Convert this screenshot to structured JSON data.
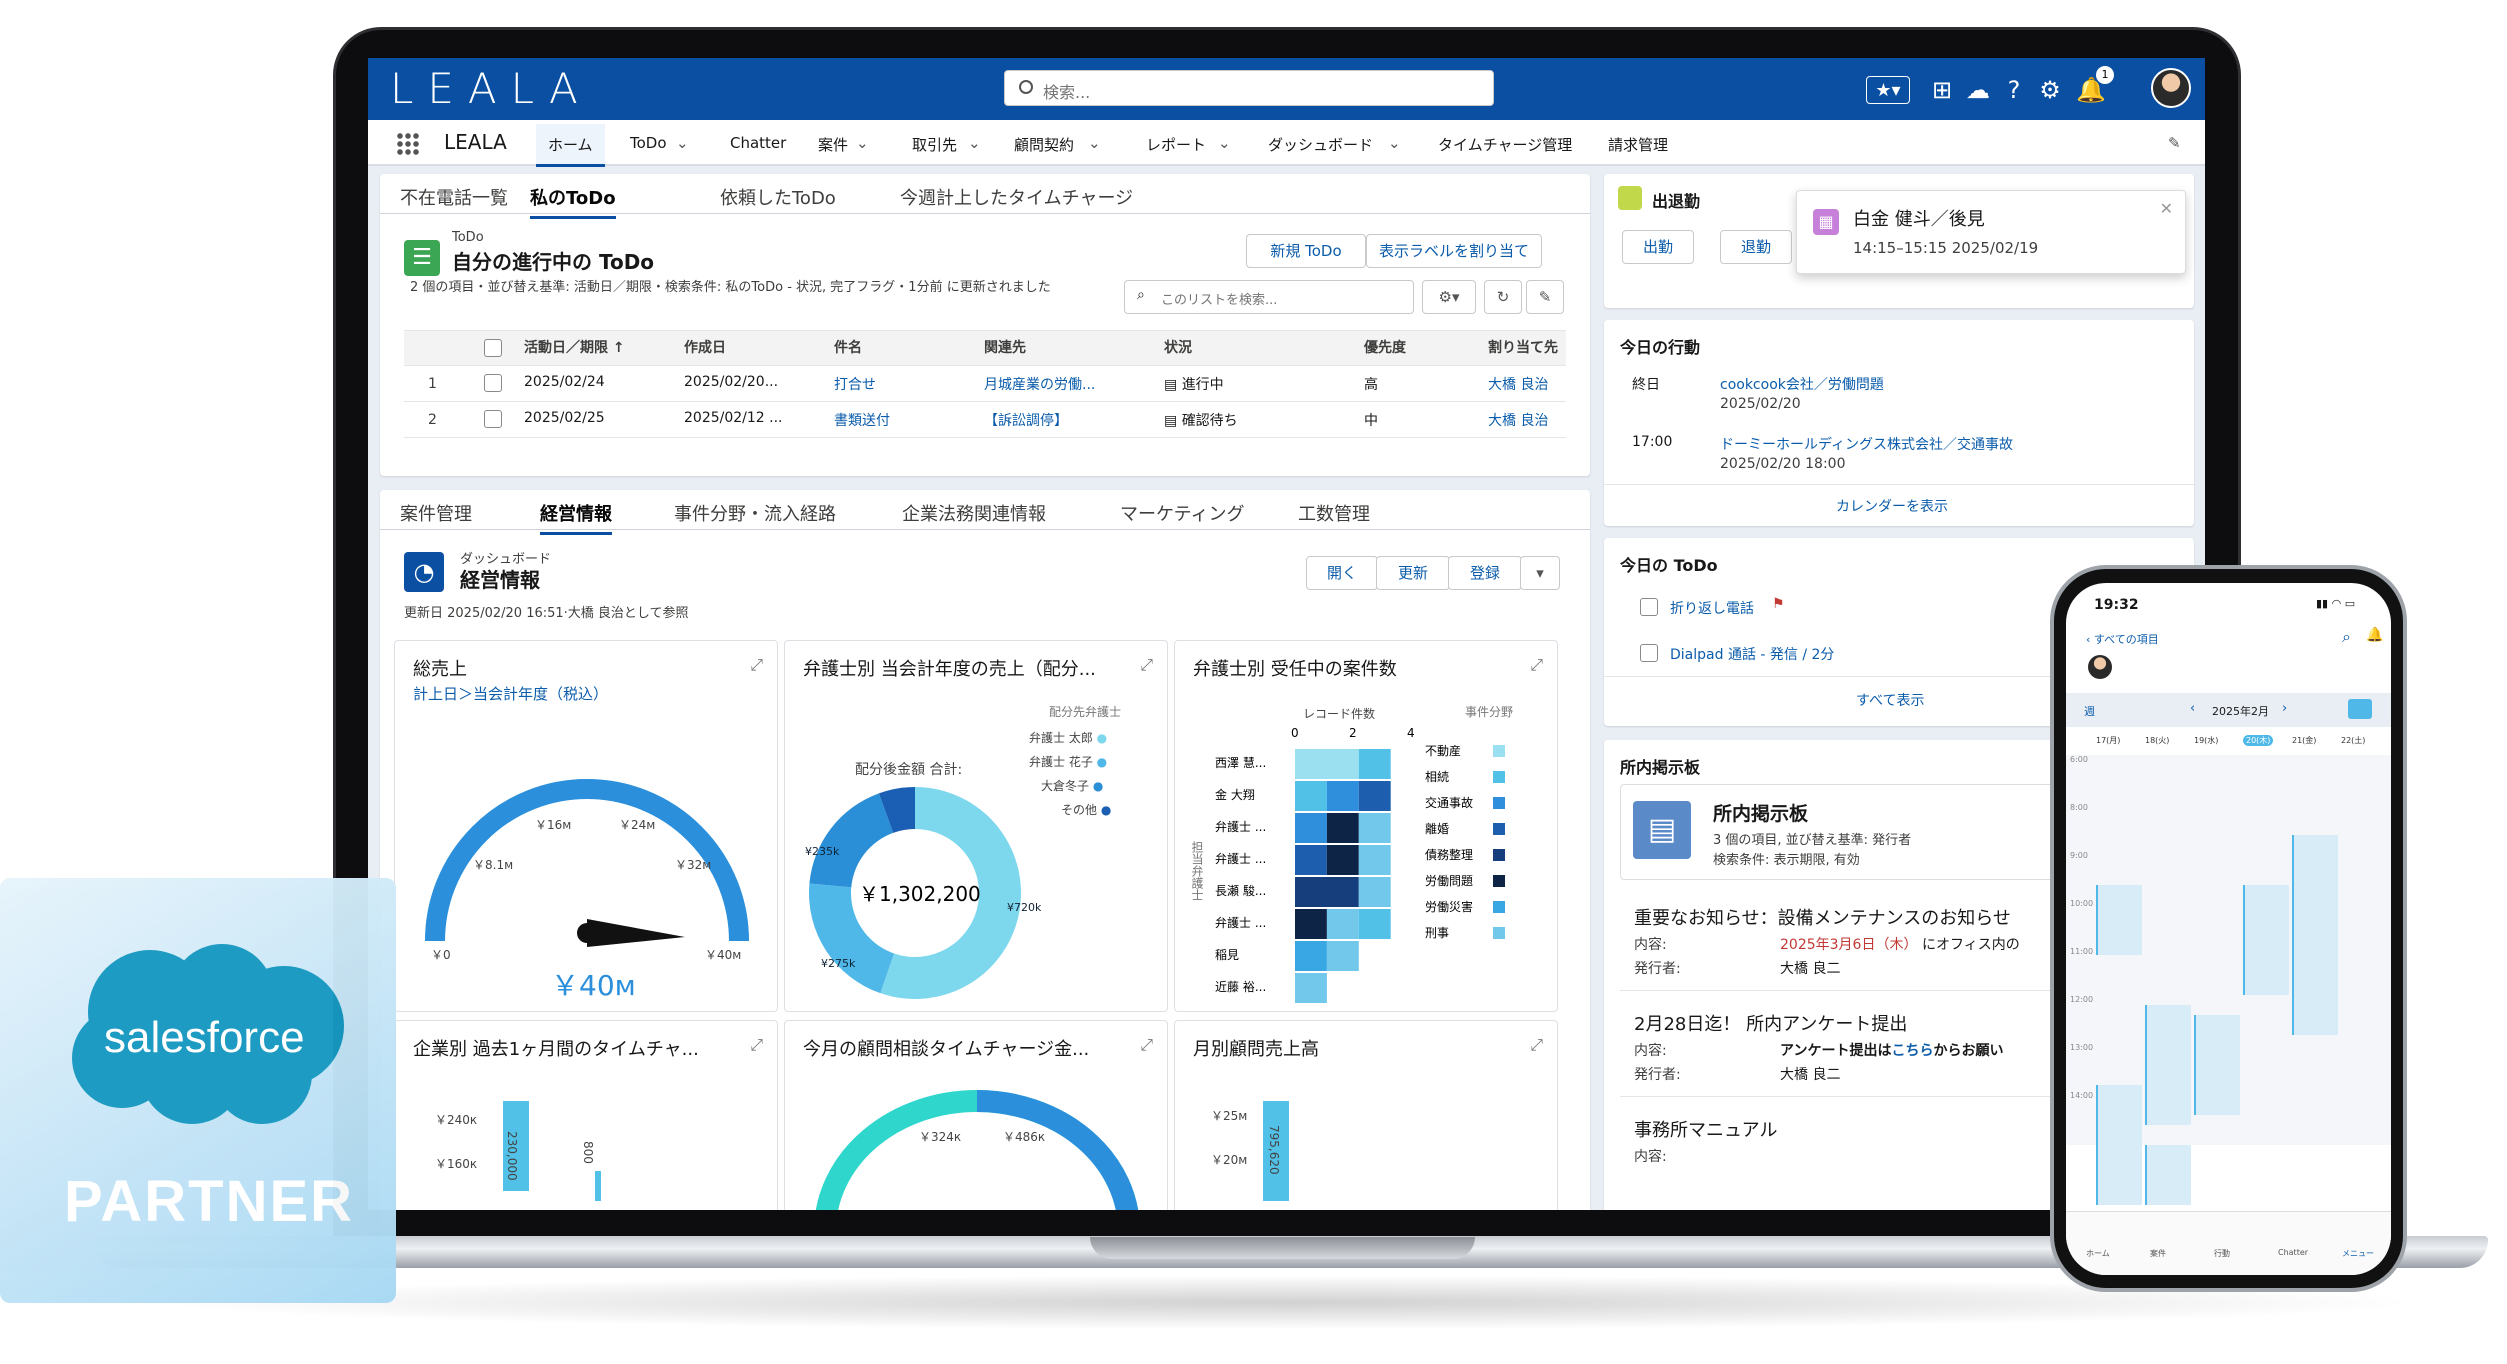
{
  "app": {
    "logo": "LEALA",
    "search_placeholder": "検索...",
    "notif_count": "1",
    "app_name": "LEALA"
  },
  "nav": [
    "ホーム",
    "ToDo",
    "Chatter",
    "案件",
    "取引先",
    "顧問契約",
    "レポート",
    "ダッシュボード",
    "タイムチャージ管理",
    "請求管理"
  ],
  "top_tabs": [
    "不在電話一覧",
    "私のToDo",
    "依頼したToDo",
    "今週計上したタイムチャージ"
  ],
  "todo": {
    "object": "ToDo",
    "title": "自分の進行中の ToDo",
    "meta": "2 個の項目・並び替え基準: 活動日／期限・検索条件: 私のToDo - 状況, 完了フラグ・1分前 に更新されました",
    "new_btn": "新規 ToDo",
    "label_btn": "表示ラベルを割り当て",
    "search_ph": "このリストを検索...",
    "headers": [
      "活動日／期限 ↑",
      "作成日",
      "件名",
      "関連先",
      "状況",
      "優先度",
      "割り当て先"
    ],
    "rows": [
      {
        "n": "1",
        "due": "2025/02/24",
        "created": "2025/02/20...",
        "subject": "打合せ",
        "related": "月城産業の労働...",
        "status": "進行中",
        "priority": "高",
        "owner": "大橋 良治"
      },
      {
        "n": "2",
        "due": "2025/02/25",
        "created": "2025/02/12 ...",
        "subject": "書類送付",
        "related": "【訴訟調停】",
        "status": "確認待ち",
        "priority": "中",
        "owner": "大橋 良治"
      }
    ]
  },
  "dash_tabs": [
    "案件管理",
    "経営情報",
    "事件分野・流入経路",
    "企業法務関連情報",
    "マーケティング",
    "工数管理"
  ],
  "dashboard": {
    "object": "ダッシュボード",
    "title": "経営情報",
    "meta": "更新日 2025/02/20 16:51·大橋 良治として参照",
    "btn_open": "開く",
    "btn_refresh": "更新",
    "btn_subscribe": "登録"
  },
  "panels": {
    "p1": {
      "title": "総売上",
      "subtitle": "計上日＞当会計年度（税込）",
      "value": "￥40м"
    },
    "p2": {
      "title": "弁護士別 当会計年度の売上（配分...",
      "legend_title": "配分先弁護士",
      "total_label": "配分後金額 合計:",
      "total": "￥1,302,200"
    },
    "p3": {
      "title": "弁護士別 受任中の案件数",
      "count_label": "レコード件数",
      "legend_title": "事件分野",
      "axis_label": "担当弁護士"
    },
    "p4": {
      "title": "企業別 過去1ヶ月間のタイムチャ..."
    },
    "p5": {
      "title": "今月の顧問相談タイムチャージ金..."
    },
    "p6": {
      "title": "月別顧問売上高"
    }
  },
  "chart_data": [
    {
      "type": "gauge",
      "title": "総売上",
      "value": 40,
      "unit": "￥M",
      "ticks": [
        "￥0",
        "￥8.1м",
        "￥16м",
        "￥24м",
        "￥32м",
        "￥40м"
      ]
    },
    {
      "type": "pie",
      "title": "弁護士別 当会計年度の売上（配分...",
      "total": "￥1,302,200",
      "slices": [
        {
          "name": "弁護士 太郎",
          "value": 720,
          "color": "#7dd8ee"
        },
        {
          "name": "弁護士 花子",
          "value": 275,
          "color": "#4fb8e8"
        },
        {
          "name": "大倉冬子",
          "value": 235,
          "color": "#2a8fd6"
        },
        {
          "name": "その他",
          "value": 72,
          "color": "#1a5fb4"
        }
      ],
      "labels": [
        "¥235k",
        "¥720k",
        "¥275k"
      ]
    },
    {
      "type": "bar",
      "title": "弁護士別 受任中の案件数",
      "categories": [
        "西澤 慧...",
        "金 大翔",
        "弁護士 ...",
        "弁護士 ...",
        "長瀬 駿...",
        "弁護士 ...",
        "稲見",
        "近藤 裕..."
      ],
      "xlim": [
        0,
        4
      ],
      "ticks": [
        "0",
        "2",
        "4"
      ],
      "series": [
        {
          "name": "不動産",
          "color": "#9be0f0"
        },
        {
          "name": "相続",
          "color": "#52c1e8"
        },
        {
          "name": "交通事故",
          "color": "#2f8fdc"
        },
        {
          "name": "離婚",
          "color": "#1d5fae"
        },
        {
          "name": "債務整理",
          "color": "#163e7d"
        },
        {
          "name": "労働問題",
          "color": "#0d2447"
        },
        {
          "name": "労働災害",
          "color": "#39a7e4"
        },
        {
          "name": "刑事",
          "color": "#71c8ea"
        }
      ]
    },
    {
      "type": "bar",
      "title": "企業別 過去1ヶ月間のタイムチャ...",
      "ticks": [
        "￥240к",
        "￥160к"
      ],
      "labels": [
        "230,000",
        "800"
      ]
    },
    {
      "type": "gauge",
      "title": "今月の顧問相談タイムチャージ金...",
      "ticks": [
        "￥324к",
        "￥486к"
      ]
    },
    {
      "type": "bar",
      "title": "月別顧問売上高",
      "ticks": [
        "￥25м",
        "￥20м"
      ],
      "labels": [
        "795,620"
      ]
    }
  ],
  "attendance": {
    "title": "出退勤",
    "in": "出勤",
    "out": "退勤",
    "event_name": "白金 健斗／後見",
    "event_time": "14:15–15:15 2025/02/19"
  },
  "today_actions": {
    "title": "今日の行動",
    "items": [
      {
        "time": "終日",
        "name": "cookcook会社／労働問題",
        "date": "2025/02/20"
      },
      {
        "time": "17:00",
        "name": "ドーミーホールディングス株式会社／交通事故",
        "date": "2025/02/20 18:00"
      }
    ],
    "link": "カレンダーを表示"
  },
  "today_todo": {
    "title": "今日の ToDo",
    "items": [
      "折り返し電話",
      "Dialpad 通話 - 発信 / 2分"
    ],
    "link": "すべて表示"
  },
  "board": {
    "title": "所内掲示板",
    "card_title": "所内掲示板",
    "card_meta1": "3 個の項目, 並び替え基準: 発行者",
    "card_meta2": "検索条件: 表示期限, 有効",
    "posts": [
      {
        "title": "重要なお知らせ：設備メンテナンスのお知らせ",
        "content_label": "内容:",
        "content": "2025年3月6日（木）",
        "content2": "にオフィス内の",
        "pub_label": "発行者:",
        "pub": "大橋 良二"
      },
      {
        "title": "2月28日迄！ 所内アンケート提出",
        "content_label": "内容:",
        "content": "アンケート提出は",
        "content_link": "こちら",
        "content2": "からお願い",
        "pub_label": "発行者:",
        "pub": "大橋 良二"
      },
      {
        "title": "事務所マニュアル",
        "content_label": "内容:"
      }
    ]
  },
  "badge": {
    "brand": "salesforce",
    "label": "PARTNER"
  },
  "phone": {
    "time": "19:32",
    "back": "すべての項目",
    "week": "週",
    "month": "2025年2月",
    "days": [
      "17(月)",
      "18(火)",
      "19(水)",
      "20(木)",
      "21(金)",
      "22(土)"
    ],
    "hours": [
      "6:00",
      "8:00",
      "9:00",
      "10:00",
      "11:00",
      "12:00",
      "13:00",
      "14:00"
    ],
    "bottom": [
      "ホーム",
      "案件",
      "行動",
      "Chatter",
      "メニュー"
    ]
  }
}
